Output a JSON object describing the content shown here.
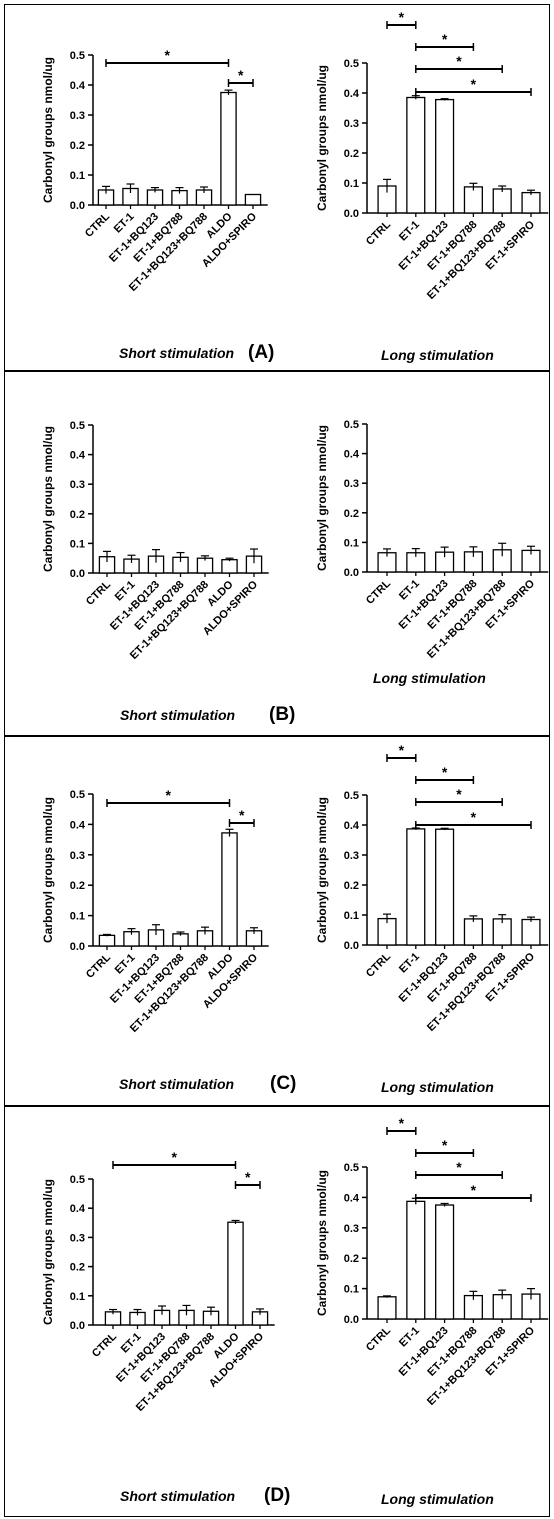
{
  "panels": [
    {
      "label": "(A)",
      "charts": [
        {
          "footer": "Short stimulation",
          "chart_data": {
            "type": "bar",
            "ylabel": "Carbonyl groups nmol/ug",
            "ylim": [
              0,
              0.5
            ],
            "yticks": [
              "0.0",
              "0.1",
              "0.2",
              "0.3",
              "0.4",
              "0.5"
            ],
            "categories": [
              "CTRL",
              "ET-1",
              "ET-1+BQ123",
              "ET-1+BQ788",
              "ET-1+BQ123+BQ788",
              "ALDO",
              "ALDO+SPIRO"
            ],
            "values": [
              0.05,
              0.055,
              0.05,
              0.048,
              0.05,
              0.375,
              0.035
            ],
            "errors": [
              0.012,
              0.015,
              0.008,
              0.01,
              0.01,
              0.008,
              0
            ],
            "significance": [
              {
                "from": "CTRL",
                "to": "ALDO",
                "label": "*",
                "level": 0
              },
              {
                "from": "ALDO",
                "to": "ALDO+SPIRO",
                "label": "*",
                "level": 1
              }
            ]
          }
        },
        {
          "footer": "Long stimulation",
          "chart_data": {
            "type": "bar",
            "ylabel": "Carbonyl groups nmol/ug",
            "ylim": [
              0,
              0.5
            ],
            "yticks": [
              "0.0",
              "0.1",
              "0.2",
              "0.3",
              "0.4",
              "0.5"
            ],
            "categories": [
              "CTRL",
              "ET-1",
              "ET-1+BQ123",
              "ET-1+BQ788",
              "ET-1+BQ123+BQ788",
              "ET-1+SPIRO"
            ],
            "values": [
              0.09,
              0.385,
              0.378,
              0.087,
              0.08,
              0.068
            ],
            "errors": [
              0.022,
              0.006,
              0.003,
              0.012,
              0.01,
              0.008
            ],
            "significance": [
              {
                "from": "CTRL",
                "to": "ET-1",
                "label": "*",
                "level": 0
              },
              {
                "from": "ET-1",
                "to": "ET-1+BQ788",
                "label": "*",
                "level": 1
              },
              {
                "from": "ET-1",
                "to": "ET-1+BQ123+BQ788",
                "label": "*",
                "level": 2
              },
              {
                "from": "ET-1",
                "to": "ET-1+SPIRO",
                "label": "*",
                "level": 3
              }
            ]
          }
        }
      ]
    },
    {
      "label": "(B)",
      "charts": [
        {
          "footer": "Short stimulation",
          "chart_data": {
            "type": "bar",
            "ylabel": "Carbonyl groups nmol/ug",
            "ylim": [
              0,
              0.5
            ],
            "yticks": [
              "0.0",
              "0.1",
              "0.2",
              "0.3",
              "0.4",
              "0.5"
            ],
            "categories": [
              "CTRL",
              "ET-1",
              "ET-1+BQ123",
              "ET-1+BQ788",
              "ET-1+BQ123+BQ788",
              "ALDO",
              "ALDO+SPIRO"
            ],
            "values": [
              0.055,
              0.047,
              0.057,
              0.053,
              0.05,
              0.045,
              0.057
            ],
            "errors": [
              0.018,
              0.013,
              0.022,
              0.016,
              0.008,
              0.005,
              0.024
            ],
            "significance": []
          }
        },
        {
          "footer": "Long stimulation",
          "chart_data": {
            "type": "bar",
            "ylabel": "Carbonyl groups nmol/ug",
            "ylim": [
              0,
              0.5
            ],
            "yticks": [
              "0.0",
              "0.1",
              "0.2",
              "0.3",
              "0.4",
              "0.5"
            ],
            "categories": [
              "CTRL",
              "ET-1",
              "ET-1+BQ123",
              "ET-1+BQ788",
              "ET-1+BQ123+BQ788",
              "ET-1+SPIRO"
            ],
            "values": [
              0.065,
              0.065,
              0.067,
              0.068,
              0.075,
              0.073
            ],
            "errors": [
              0.013,
              0.014,
              0.017,
              0.017,
              0.022,
              0.014
            ],
            "significance": []
          }
        }
      ]
    },
    {
      "label": "(C)",
      "charts": [
        {
          "footer": "Short stimulation",
          "chart_data": {
            "type": "bar",
            "ylabel": "Carbonyl groups nmol/ug",
            "ylim": [
              0,
              0.5
            ],
            "yticks": [
              "0.0",
              "0.1",
              "0.2",
              "0.3",
              "0.4",
              "0.5"
            ],
            "categories": [
              "CTRL",
              "ET-1",
              "ET-1+BQ123",
              "ET-1+BQ788",
              "ET-1+BQ123+BQ788",
              "ALDO",
              "ALDO+SPIRO"
            ],
            "values": [
              0.035,
              0.047,
              0.053,
              0.04,
              0.05,
              0.372,
              0.05
            ],
            "errors": [
              0.003,
              0.01,
              0.017,
              0.006,
              0.012,
              0.012,
              0.01
            ],
            "significance": [
              {
                "from": "CTRL",
                "to": "ALDO",
                "label": "*",
                "level": 0
              },
              {
                "from": "ALDO",
                "to": "ALDO+SPIRO",
                "label": "*",
                "level": 1
              }
            ]
          }
        },
        {
          "footer": "Long stimulation",
          "chart_data": {
            "type": "bar",
            "ylabel": "Carbonyl groups nmol/ug",
            "ylim": [
              0,
              0.5
            ],
            "yticks": [
              "0.0",
              "0.1",
              "0.2",
              "0.3",
              "0.4",
              "0.5"
            ],
            "categories": [
              "CTRL",
              "ET-1",
              "ET-1+BQ123",
              "ET-1+BQ788",
              "ET-1+BQ123+BQ788",
              "ET-1+SPIRO"
            ],
            "values": [
              0.088,
              0.387,
              0.386,
              0.087,
              0.087,
              0.085
            ],
            "errors": [
              0.015,
              0.003,
              0.003,
              0.01,
              0.014,
              0.008
            ],
            "significance": [
              {
                "from": "CTRL",
                "to": "ET-1",
                "label": "*",
                "level": 0
              },
              {
                "from": "ET-1",
                "to": "ET-1+BQ788",
                "label": "*",
                "level": 1
              },
              {
                "from": "ET-1",
                "to": "ET-1+BQ123+BQ788",
                "label": "*",
                "level": 2
              },
              {
                "from": "ET-1",
                "to": "ET-1+SPIRO",
                "label": "*",
                "level": 3
              }
            ]
          }
        }
      ]
    },
    {
      "label": "(D)",
      "charts": [
        {
          "footer": "Short stimulation",
          "chart_data": {
            "type": "bar",
            "ylabel": "Carbonyl groups nmol/ug",
            "ylim": [
              0,
              0.5
            ],
            "yticks": [
              "0.0",
              "0.1",
              "0.2",
              "0.3",
              "0.4",
              "0.5"
            ],
            "categories": [
              "CTRL",
              "ET-1",
              "ET-1+BQ123",
              "ET-1+BQ788",
              "ET-1+BQ123+BQ788",
              "ALDO",
              "ALDO+SPIRO"
            ],
            "values": [
              0.045,
              0.043,
              0.05,
              0.05,
              0.047,
              0.352,
              0.045
            ],
            "errors": [
              0.008,
              0.01,
              0.015,
              0.017,
              0.014,
              0.006,
              0.01
            ],
            "significance": [
              {
                "from": "CTRL",
                "to": "ALDO",
                "label": "*",
                "level": 0
              },
              {
                "from": "ALDO",
                "to": "ALDO+SPIRO",
                "label": "*",
                "level": 1
              }
            ]
          }
        },
        {
          "footer": "Long stimulation",
          "chart_data": {
            "type": "bar",
            "ylabel": "Carbonyl groups nmol/ug",
            "ylim": [
              0,
              0.5
            ],
            "yticks": [
              "0.0",
              "0.1",
              "0.2",
              "0.3",
              "0.4",
              "0.5"
            ],
            "categories": [
              "CTRL",
              "ET-1",
              "ET-1+BQ123",
              "ET-1+BQ788",
              "ET-1+BQ123+BQ788",
              "ET-1+SPIRO"
            ],
            "values": [
              0.073,
              0.387,
              0.375,
              0.077,
              0.08,
              0.082
            ],
            "errors": [
              0.003,
              0.01,
              0.005,
              0.014,
              0.015,
              0.018
            ],
            "significance": [
              {
                "from": "CTRL",
                "to": "ET-1",
                "label": "*",
                "level": 0
              },
              {
                "from": "ET-1",
                "to": "ET-1+BQ788",
                "label": "*",
                "level": 1
              },
              {
                "from": "ET-1",
                "to": "ET-1+BQ123+BQ788",
                "label": "*",
                "level": 2
              },
              {
                "from": "ET-1",
                "to": "ET-1+SPIRO",
                "label": "*",
                "level": 3
              }
            ]
          }
        }
      ]
    }
  ]
}
